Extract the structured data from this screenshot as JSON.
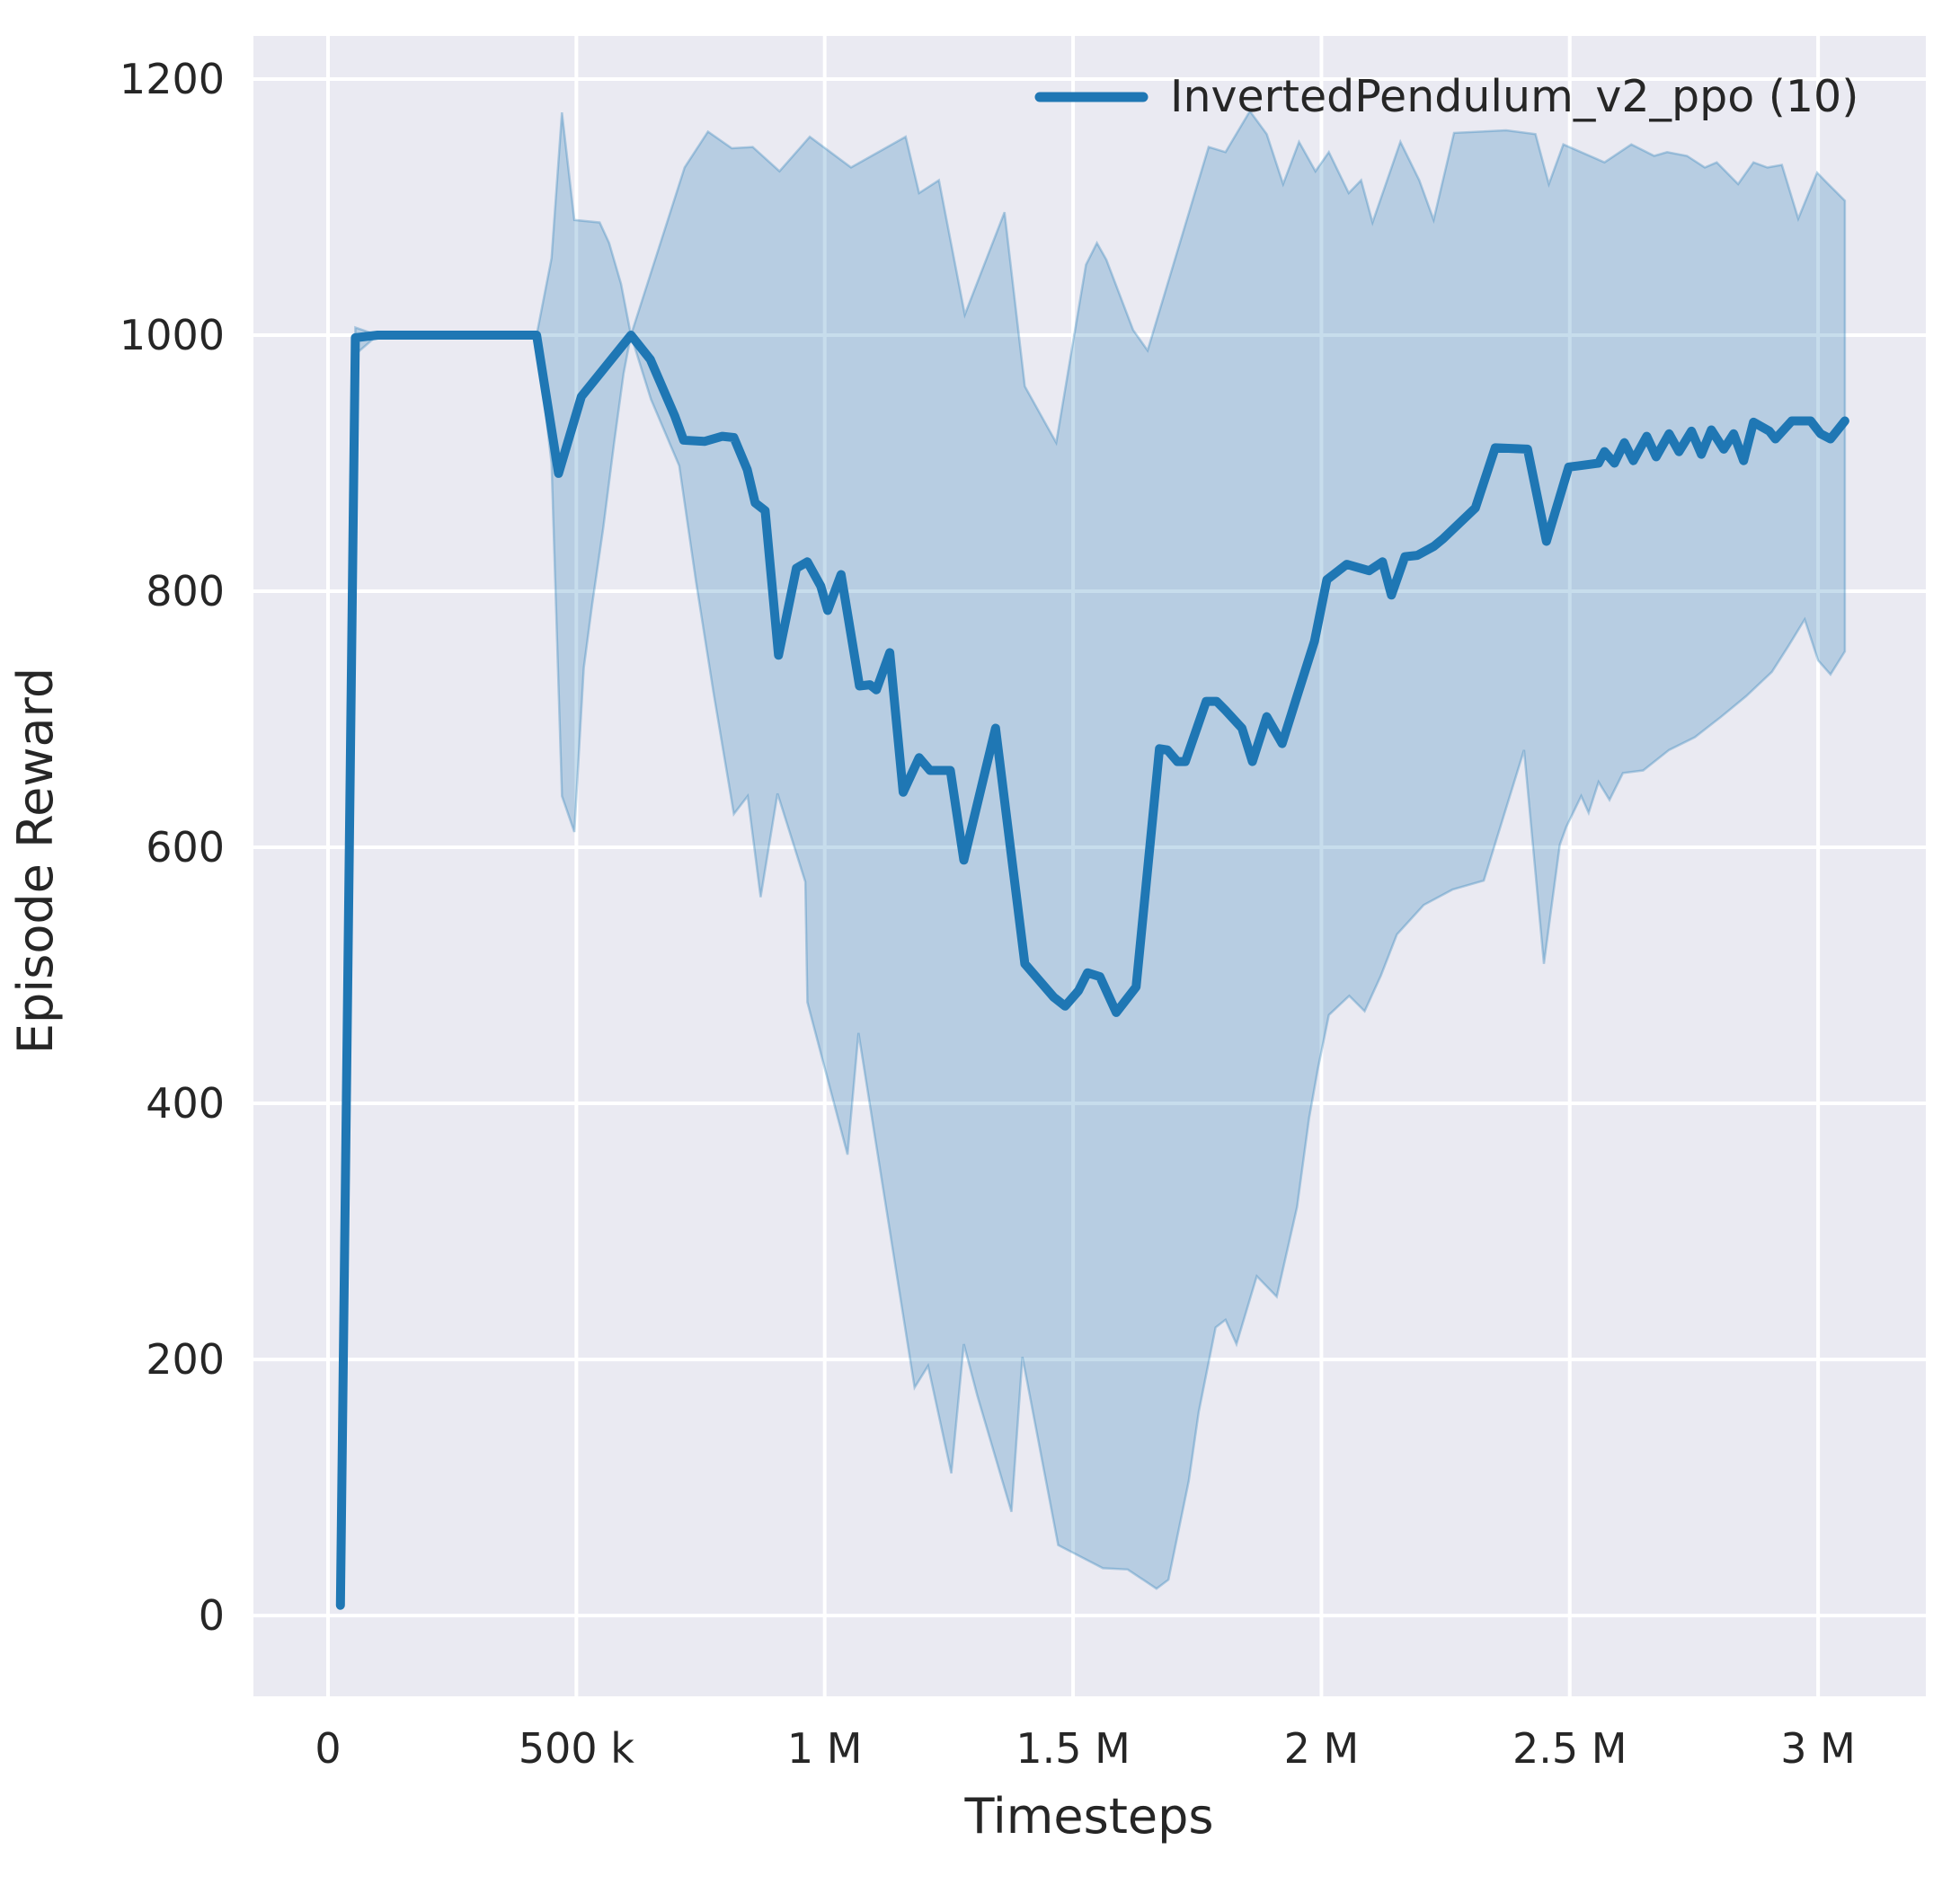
{
  "chart_data": {
    "type": "line",
    "title": "",
    "xlabel": "Timesteps",
    "ylabel": "Episode Reward",
    "grid": true,
    "legend_position": "upper right",
    "xlim": [
      -150172,
      3216935
    ],
    "ylim": [
      -63.1,
      1233.7
    ],
    "colors": {
      "plot_bg": "#eaeaf2",
      "grid": "#ffffff",
      "text": "#262626",
      "accent": "#1f77b4"
    },
    "xticks": [
      {
        "value": 0,
        "label": "0"
      },
      {
        "value": 500000,
        "label": "500 k"
      },
      {
        "value": 1000000,
        "label": "1 M"
      },
      {
        "value": 1500000,
        "label": "1.5 M"
      },
      {
        "value": 2000000,
        "label": "2 M"
      },
      {
        "value": 2500000,
        "label": "2.5 M"
      },
      {
        "value": 3000000,
        "label": "3 M"
      }
    ],
    "yticks": [
      {
        "value": 0,
        "label": "0"
      },
      {
        "value": 200,
        "label": "200"
      },
      {
        "value": 400,
        "label": "400"
      },
      {
        "value": 600,
        "label": "600"
      },
      {
        "value": 800,
        "label": "800"
      },
      {
        "value": 1000,
        "label": "1000"
      },
      {
        "value": 1200,
        "label": "1200"
      }
    ],
    "series": [
      {
        "name": "InvertedPendulum_v2_ppo (10)",
        "color": "#1f77b4",
        "linewidth": 10,
        "band_opacity": 0.25,
        "points": [
          [
            25000,
            8
          ],
          [
            55000,
            998
          ],
          [
            100000,
            1000
          ],
          [
            420000,
            1000
          ],
          [
            464000,
            892
          ],
          [
            510000,
            952
          ],
          [
            610000,
            1000
          ],
          [
            649000,
            981
          ],
          [
            698000,
            937
          ],
          [
            716000,
            918
          ],
          [
            758000,
            917
          ],
          [
            794000,
            921
          ],
          [
            817000,
            920
          ],
          [
            844000,
            895
          ],
          [
            860000,
            869
          ],
          [
            880000,
            863
          ],
          [
            907000,
            750
          ],
          [
            943000,
            818
          ],
          [
            965000,
            823
          ],
          [
            992000,
            804
          ],
          [
            1006000,
            785
          ],
          [
            1033000,
            813
          ],
          [
            1070000,
            726
          ],
          [
            1091000,
            727
          ],
          [
            1104000,
            723
          ],
          [
            1131000,
            752
          ],
          [
            1158000,
            643
          ],
          [
            1190000,
            670
          ],
          [
            1212000,
            660
          ],
          [
            1253000,
            660
          ],
          [
            1280000,
            590
          ],
          [
            1344000,
            693
          ],
          [
            1403000,
            509
          ],
          [
            1461000,
            483
          ],
          [
            1484000,
            476
          ],
          [
            1511000,
            488
          ],
          [
            1529000,
            502
          ],
          [
            1554000,
            499
          ],
          [
            1587000,
            471
          ],
          [
            1627000,
            491
          ],
          [
            1674000,
            677
          ],
          [
            1690000,
            676
          ],
          [
            1710000,
            667
          ],
          [
            1726000,
            667
          ],
          [
            1768000,
            714
          ],
          [
            1789000,
            714
          ],
          [
            1807000,
            707
          ],
          [
            1840000,
            693
          ],
          [
            1861000,
            667
          ],
          [
            1890000,
            702
          ],
          [
            1921000,
            681
          ],
          [
            1951000,
            718
          ],
          [
            1986000,
            761
          ],
          [
            2011000,
            809
          ],
          [
            2051000,
            821
          ],
          [
            2096000,
            816
          ],
          [
            2123000,
            823
          ],
          [
            2141000,
            797
          ],
          [
            2168000,
            827
          ],
          [
            2193000,
            828
          ],
          [
            2226000,
            835
          ],
          [
            2245000,
            841
          ],
          [
            2310000,
            865
          ],
          [
            2350000,
            912
          ],
          [
            2415000,
            911
          ],
          [
            2453000,
            839
          ],
          [
            2498000,
            897
          ],
          [
            2518000,
            898
          ],
          [
            2558000,
            900
          ],
          [
            2570000,
            909
          ],
          [
            2590000,
            900
          ],
          [
            2610000,
            916
          ],
          [
            2628000,
            902
          ],
          [
            2655000,
            921
          ],
          [
            2674000,
            905
          ],
          [
            2700000,
            923
          ],
          [
            2720000,
            909
          ],
          [
            2745000,
            925
          ],
          [
            2765000,
            907
          ],
          [
            2785000,
            926
          ],
          [
            2810000,
            911
          ],
          [
            2830000,
            923
          ],
          [
            2850000,
            902
          ],
          [
            2870000,
            932
          ],
          [
            2902000,
            925
          ],
          [
            2914000,
            919
          ],
          [
            2947000,
            933
          ],
          [
            2985000,
            933
          ],
          [
            3005000,
            923
          ],
          [
            3025000,
            919
          ],
          [
            3054000,
            933
          ]
        ],
        "band": {
          "hi": [
            [
              25000,
              12
            ],
            [
              55000,
              1006
            ],
            [
              100000,
              1000
            ],
            [
              420000,
              1000
            ],
            [
              450000,
              1060
            ],
            [
              471000,
              1174
            ],
            [
              496000,
              1090
            ],
            [
              547000,
              1088
            ],
            [
              566000,
              1072
            ],
            [
              590000,
              1040
            ],
            [
              610000,
              1000
            ],
            [
              718000,
              1131
            ],
            [
              765000,
              1159
            ],
            [
              813000,
              1146
            ],
            [
              855000,
              1147
            ],
            [
              909000,
              1128
            ],
            [
              970000,
              1155
            ],
            [
              1053000,
              1131
            ],
            [
              1163000,
              1155
            ],
            [
              1190000,
              1111
            ],
            [
              1230000,
              1121
            ],
            [
              1282000,
              1016
            ],
            [
              1362000,
              1096
            ],
            [
              1403000,
              960
            ],
            [
              1466000,
              916
            ],
            [
              1526000,
              1055
            ],
            [
              1548000,
              1072
            ],
            [
              1567000,
              1059
            ],
            [
              1621000,
              1004
            ],
            [
              1650000,
              988
            ],
            [
              1773000,
              1147
            ],
            [
              1807000,
              1143
            ],
            [
              1856000,
              1175
            ],
            [
              1890000,
              1157
            ],
            [
              1923000,
              1118
            ],
            [
              1955000,
              1151
            ],
            [
              1988000,
              1128
            ],
            [
              2015000,
              1143
            ],
            [
              2055000,
              1111
            ],
            [
              2080000,
              1121
            ],
            [
              2103000,
              1088
            ],
            [
              2159000,
              1151
            ],
            [
              2197000,
              1121
            ],
            [
              2226000,
              1090
            ],
            [
              2267000,
              1158
            ],
            [
              2372000,
              1160
            ],
            [
              2431000,
              1157
            ],
            [
              2458000,
              1118
            ],
            [
              2487000,
              1149
            ],
            [
              2570000,
              1135
            ],
            [
              2624000,
              1149
            ],
            [
              2670000,
              1140
            ],
            [
              2696000,
              1143
            ],
            [
              2736000,
              1140
            ],
            [
              2772000,
              1131
            ],
            [
              2796000,
              1135
            ],
            [
              2839000,
              1118
            ],
            [
              2870000,
              1135
            ],
            [
              2898000,
              1131
            ],
            [
              2927000,
              1133
            ],
            [
              2960000,
              1091
            ],
            [
              2998000,
              1127
            ],
            [
              3018000,
              1119
            ],
            [
              3054000,
              1105
            ]
          ],
          "lo": [
            [
              25000,
              5
            ],
            [
              55000,
              985
            ],
            [
              100000,
              1000
            ],
            [
              420000,
              1000
            ],
            [
              450000,
              900
            ],
            [
              471000,
              640
            ],
            [
              496000,
              612
            ],
            [
              515000,
              740
            ],
            [
              532000,
              790
            ],
            [
              554000,
              849
            ],
            [
              576000,
              916
            ],
            [
              595000,
              970
            ],
            [
              610000,
              1000
            ],
            [
              650000,
              950
            ],
            [
              707000,
              898
            ],
            [
              741000,
              807
            ],
            [
              776000,
              721
            ],
            [
              817000,
              626
            ],
            [
              845000,
              640
            ],
            [
              871000,
              561
            ],
            [
              905000,
              642
            ],
            [
              961000,
              573
            ],
            [
              965000,
              479
            ],
            [
              1046000,
              360
            ],
            [
              1068000,
              455
            ],
            [
              1181000,
              178
            ],
            [
              1208000,
              195
            ],
            [
              1255000,
              111
            ],
            [
              1280000,
              212
            ],
            [
              1307000,
              172
            ],
            [
              1376000,
              81
            ],
            [
              1398000,
              202
            ],
            [
              1470000,
              55
            ],
            [
              1560000,
              37
            ],
            [
              1610000,
              36
            ],
            [
              1668000,
              21
            ],
            [
              1692000,
              28
            ],
            [
              1733000,
              105
            ],
            [
              1753000,
              159
            ],
            [
              1787000,
              225
            ],
            [
              1807000,
              231
            ],
            [
              1829000,
              212
            ],
            [
              1870000,
              265
            ],
            [
              1910000,
              249
            ],
            [
              1951000,
              319
            ],
            [
              1975000,
              388
            ],
            [
              1993000,
              427
            ],
            [
              2015000,
              469
            ],
            [
              2056000,
              484
            ],
            [
              2087000,
              472
            ],
            [
              2120000,
              500
            ],
            [
              2152000,
              532
            ],
            [
              2206000,
              555
            ],
            [
              2264000,
              567
            ],
            [
              2327000,
              574
            ],
            [
              2408000,
              676
            ],
            [
              2448000,
              509
            ],
            [
              2480000,
              602
            ],
            [
              2493000,
              616
            ],
            [
              2523000,
              640
            ],
            [
              2538000,
              627
            ],
            [
              2558000,
              651
            ],
            [
              2580000,
              637
            ],
            [
              2607000,
              658
            ],
            [
              2648000,
              660
            ],
            [
              2700000,
              676
            ],
            [
              2752000,
              686
            ],
            [
              2805000,
              702
            ],
            [
              2855000,
              718
            ],
            [
              2907000,
              737
            ],
            [
              2940000,
              757
            ],
            [
              2973000,
              778
            ],
            [
              3000000,
              746
            ],
            [
              3025000,
              735
            ],
            [
              3054000,
              753
            ]
          ]
        }
      }
    ]
  }
}
